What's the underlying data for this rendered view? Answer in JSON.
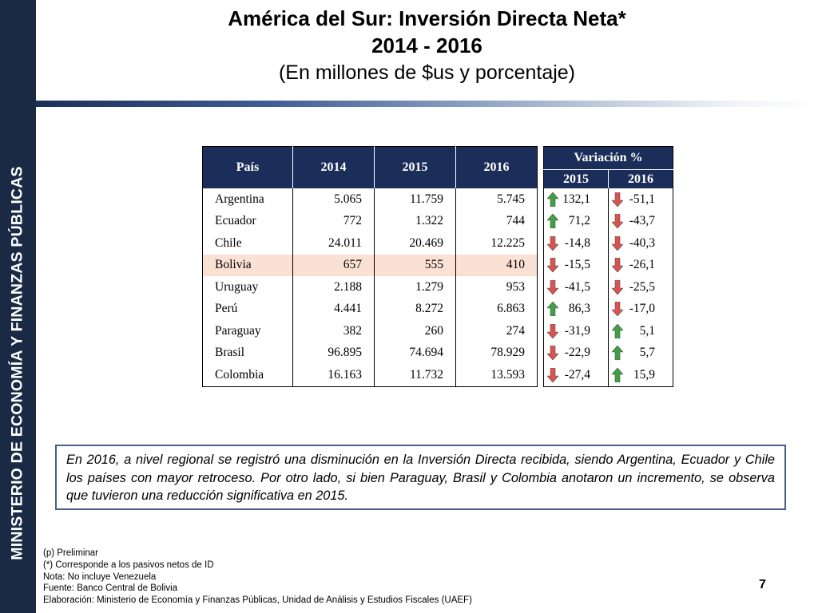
{
  "sidebar": {
    "text": "MINISTERIO DE ECONOMÍA Y FINANZAS PÚBLICAS"
  },
  "header": {
    "title_line1": "América del Sur: Inversión Directa Neta*",
    "title_line2": "2014 - 2016",
    "subtitle": "(En millones de $us y porcentaje)"
  },
  "table": {
    "headers": [
      "País",
      "2014",
      "2015",
      "2016"
    ],
    "rows": [
      [
        "Argentina",
        "5.065",
        "11.759",
        "5.745"
      ],
      [
        "Ecuador",
        "772",
        "1.322",
        "744"
      ],
      [
        "Chile",
        "24.011",
        "20.469",
        "12.225"
      ],
      [
        "Bolivia",
        "657",
        "555",
        "410"
      ],
      [
        "Uruguay",
        "2.188",
        "1.279",
        "953"
      ],
      [
        "Perú",
        "4.441",
        "8.272",
        "6.863"
      ],
      [
        "Paraguay",
        "382",
        "260",
        "274"
      ],
      [
        "Brasil",
        "96.895",
        "74.694",
        "78.929"
      ],
      [
        "Colombia",
        "16.163",
        "11.732",
        "13.593"
      ]
    ],
    "highlight_row": "Bolivia",
    "highlight_color": "#fbe1d4",
    "header_color": "#1b2e5a"
  },
  "variation": {
    "title": "Variación %",
    "years": [
      "2015",
      "2016"
    ],
    "rows": [
      [
        {
          "value": "132,1",
          "arrow": "up"
        },
        {
          "value": "-51,1",
          "arrow": "down"
        }
      ],
      [
        {
          "value": "71,2",
          "arrow": "up"
        },
        {
          "value": "-43,7",
          "arrow": "down"
        }
      ],
      [
        {
          "value": "-14,8",
          "arrow": "down"
        },
        {
          "value": "-40,3",
          "arrow": "down"
        }
      ],
      [
        {
          "value": "-15,5",
          "arrow": "down"
        },
        {
          "value": "-26,1",
          "arrow": "down"
        }
      ],
      [
        {
          "value": "-41,5",
          "arrow": "down"
        },
        {
          "value": "-25,5",
          "arrow": "down"
        }
      ],
      [
        {
          "value": "86,3",
          "arrow": "up"
        },
        {
          "value": "-17,0",
          "arrow": "down"
        }
      ],
      [
        {
          "value": "-31,9",
          "arrow": "down"
        },
        {
          "value": "5,1",
          "arrow": "up"
        }
      ],
      [
        {
          "value": "-22,9",
          "arrow": "down"
        },
        {
          "value": "5,7",
          "arrow": "up"
        }
      ],
      [
        {
          "value": "-27,4",
          "arrow": "down"
        },
        {
          "value": "15,9",
          "arrow": "up"
        }
      ]
    ],
    "up_color": "#3fa043",
    "down_color": "#d9534f"
  },
  "note": "En 2016, a nivel regional se registró una disminución en la Inversión Directa recibida, siendo Argentina, Ecuador y Chile los países con mayor retroceso. Por otro lado, si bien Paraguay, Brasil y Colombia anotaron un incremento, se observa que tuvieron una reducción significativa en 2015.",
  "footnotes": [
    "(p) Preliminar",
    "(*) Corresponde a los pasivos netos de ID",
    "Nota: No incluye Venezuela",
    "Fuente: Banco Central de Bolivia",
    "Elaboración: Ministerio de Economía y Finanzas Públicas, Unidad de Análisis y Estudios Fiscales (UAEF)"
  ],
  "page_number": "7"
}
